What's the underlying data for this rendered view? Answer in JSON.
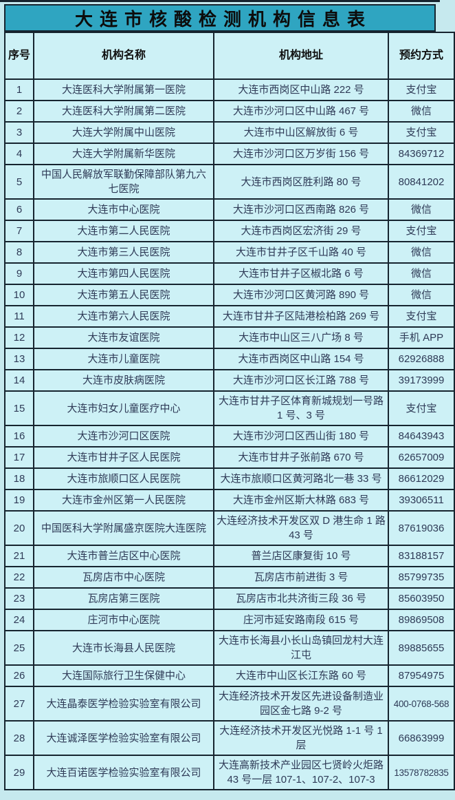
{
  "title": "大连市核酸检测机构信息表",
  "colors": {
    "title_bar_bg": "#2fa5c1",
    "cell_bg": "#cdf1f6",
    "page_bg": "#c6e9ee",
    "border": "#16242f",
    "body_text": "#2e3a56",
    "heading_text": "#0c0c0c"
  },
  "table": {
    "headers": {
      "no": "序号",
      "name": "机构名称",
      "address": "机构地址",
      "booking": "预约方式"
    },
    "rows": [
      {
        "no": "1",
        "name": "大连医科大学附属第一医院",
        "address": "大连市西岗区中山路 222 号",
        "booking": "支付宝"
      },
      {
        "no": "2",
        "name": "大连医科大学附属第二医院",
        "address": "大连市沙河口区中山路 467 号",
        "booking": "微信"
      },
      {
        "no": "3",
        "name": "大连大学附属中山医院",
        "address": "大连市中山区解放街 6 号",
        "booking": "支付宝"
      },
      {
        "no": "4",
        "name": "大连大学附属新华医院",
        "address": "大连市沙河口区万岁街 156 号",
        "booking": "84369712"
      },
      {
        "no": "5",
        "name": "中国人民解放军联勤保障部队第九六七医院",
        "address": "大连市西岗区胜利路 80 号",
        "booking": "80841202"
      },
      {
        "no": "6",
        "name": "大连市中心医院",
        "address": "大连市沙河口区西南路 826 号",
        "booking": "微信"
      },
      {
        "no": "7",
        "name": "大连市第二人民医院",
        "address": "大连市西岗区宏济街 29 号",
        "booking": "支付宝"
      },
      {
        "no": "8",
        "name": "大连市第三人民医院",
        "address": "大连市甘井子区千山路 40 号",
        "booking": "微信"
      },
      {
        "no": "9",
        "name": "大连市第四人民医院",
        "address": "大连市甘井子区椒北路 6 号",
        "booking": "微信"
      },
      {
        "no": "10",
        "name": "大连市第五人民医院",
        "address": "大连市沙河口区黄河路 890 号",
        "booking": "微信"
      },
      {
        "no": "11",
        "name": "大连市第六人民医院",
        "address": "大连市甘井子区陆港桧柏路 269 号",
        "booking": "支付宝"
      },
      {
        "no": "12",
        "name": "大连市友谊医院",
        "address": "大连市中山区三八广场 8 号",
        "booking": "手机 APP"
      },
      {
        "no": "13",
        "name": "大连市儿童医院",
        "address": "大连市西岗区中山路 154 号",
        "booking": "62926888"
      },
      {
        "no": "14",
        "name": "大连市皮肤病医院",
        "address": "大连市沙河口区长江路 788 号",
        "booking": "39173999"
      },
      {
        "no": "15",
        "name": "大连市妇女儿童医疗中心",
        "address": "大连市甘井子区体育新城规划一号路 1 号、3 号",
        "booking": "支付宝"
      },
      {
        "no": "16",
        "name": "大连市沙河口区医院",
        "address": "大连市沙河口区西山街 180 号",
        "booking": "84643943"
      },
      {
        "no": "17",
        "name": "大连市甘井子区人民医院",
        "address": "大连市甘井子张前路 670 号",
        "booking": "62657009"
      },
      {
        "no": "18",
        "name": "大连市旅顺口区人民医院",
        "address": "大连市旅顺口区黄河路北一巷 33 号",
        "booking": "86612029"
      },
      {
        "no": "19",
        "name": "大连市金州区第一人民医院",
        "address": "大连市金州区斯大林路 683 号",
        "booking": "39306511"
      },
      {
        "no": "20",
        "name": "中国医科大学附属盛京医院大连医院",
        "address": "大连经济技术开发区双 D 港生命 1 路 43 号",
        "booking": "87619036"
      },
      {
        "no": "21",
        "name": "大连市普兰店区中心医院",
        "address": "普兰店区康复街 10 号",
        "booking": "83188157"
      },
      {
        "no": "22",
        "name": "瓦房店市中心医院",
        "address": "瓦房店市前进街 3 号",
        "booking": "85799735"
      },
      {
        "no": "23",
        "name": "瓦房店第三医院",
        "address": "瓦房店市北共济街三段 36 号",
        "booking": "85603950"
      },
      {
        "no": "24",
        "name": "庄河市中心医院",
        "address": "庄河市延安路南段 615 号",
        "booking": "89869508"
      },
      {
        "no": "25",
        "name": "大连市长海县人民医院",
        "address": "大连市长海县小长山岛镇回龙村大连江屯",
        "booking": "89885655"
      },
      {
        "no": "26",
        "name": "大连国际旅行卫生保健中心",
        "address": "大连市中山区长江东路 60 号",
        "booking": "87954975"
      },
      {
        "no": "27",
        "name": "大连晶泰医学检验实验室有限公司",
        "address": "大连经济技术开发区先进设备制造业园区金七路 9-2 号",
        "booking": "400-0768-568"
      },
      {
        "no": "28",
        "name": "大连诚泽医学检验实验室有限公司",
        "address": "大连经济技术开发区光悦路 1-1 号 1层",
        "booking": "66863999"
      },
      {
        "no": "29",
        "name": "大连百诺医学检验实验室有限公司",
        "address": "大连高新技术产业园区七贤岭火炬路 43 号一层 107-1、107-2、107-3",
        "booking": "13578782835"
      }
    ]
  }
}
